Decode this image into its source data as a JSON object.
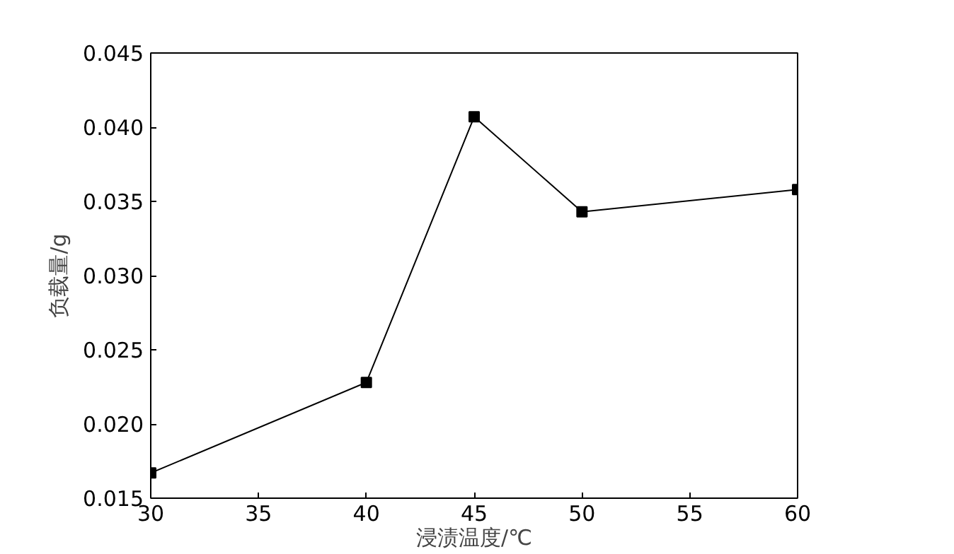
{
  "chart_data": {
    "type": "line",
    "xlabel": "浸渍温度/℃",
    "ylabel": "负载量/g",
    "x": [
      30,
      40,
      45,
      50,
      60
    ],
    "series": [
      {
        "color": "#000000",
        "values": [
          0.0167,
          0.0228,
          0.0407,
          0.0343,
          0.0358
        ]
      }
    ],
    "xlim": [
      30,
      60
    ],
    "xticks": [
      30,
      35,
      40,
      45,
      50,
      55,
      60
    ],
    "ylim": [
      0.015,
      0.045
    ],
    "yticks": [
      {
        "value": 0.015,
        "label": "0.015"
      },
      {
        "value": 0.02,
        "label": "0.020"
      },
      {
        "value": 0.025,
        "label": "0.025"
      },
      {
        "value": 0.03,
        "label": "0.030"
      },
      {
        "value": 0.035,
        "label": "0.035"
      },
      {
        "value": 0.04,
        "label": "0.040"
      },
      {
        "value": 0.045,
        "label": "0.045"
      }
    ],
    "grid": false,
    "marker": "square",
    "line_style": "solid"
  }
}
